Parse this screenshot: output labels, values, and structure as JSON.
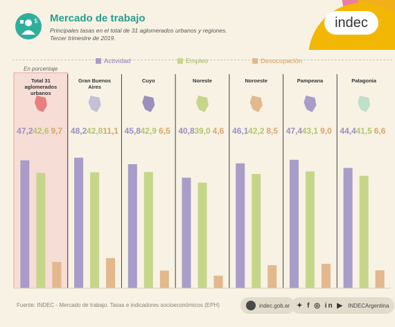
{
  "header": {
    "title": "Mercado de trabajo",
    "subtitle_line1": "Principales tasas en el total de 31 aglomerados urbanos y regiones.",
    "subtitle_line2": "Tercer trimestre de 2019."
  },
  "brand": {
    "logo": "indec",
    "colors": [
      "#f2b705",
      "#e87ea1",
      "#2fae9b"
    ]
  },
  "footer": {
    "source": "Fuente: INDEC - Mercado de trabajo. Tasas e indicadores socioeconómicos (EPH)",
    "website": "indec.gob.ar",
    "social_handle": "INDECArgentina"
  },
  "chart_data": {
    "type": "bar",
    "unit_label": "En porcentaje",
    "ylim": [
      0,
      55
    ],
    "categories": [
      "Total 31 aglomerados urbanos",
      "Gran Buenos Aires",
      "Cuyo",
      "Noreste",
      "Noroeste",
      "Pampeana",
      "Patagonia"
    ],
    "series": [
      {
        "name": "Actividad",
        "color": "#a89cc8",
        "values": [
          47.2,
          48.2,
          45.8,
          40.8,
          46.1,
          47.4,
          44.4
        ]
      },
      {
        "name": "Empleo",
        "color": "#c5d68a",
        "values": [
          42.6,
          42.8,
          42.9,
          39.0,
          42.2,
          43.1,
          41.5
        ]
      },
      {
        "name": "Desocupación",
        "color": "#e2b88c",
        "values": [
          9.7,
          11.1,
          6.5,
          4.6,
          8.5,
          9.0,
          6.6
        ]
      }
    ],
    "value_labels": [
      [
        "47,2",
        "42,6",
        "9,7"
      ],
      [
        "48,2",
        "42,8",
        "11,1"
      ],
      [
        "45,8",
        "42,9",
        "6,5"
      ],
      [
        "40,8",
        "39,0",
        "4,6"
      ],
      [
        "46,1",
        "42,2",
        "8,5"
      ],
      [
        "47,4",
        "43,1",
        "9,0"
      ],
      [
        "44,4",
        "41,5",
        "6,6"
      ]
    ],
    "label_colors": [
      "#9c8fbf",
      "#b6c46e",
      "#d9a56f"
    ],
    "highlight_category": 0,
    "highlight_color": "#f6ddd6",
    "map_colors": [
      "#e87e7e",
      "#c6bfd6",
      "#9c8fbf",
      "#c5d68a",
      "#e2b88c",
      "#a89cc8",
      "#bfe0c9"
    ]
  }
}
